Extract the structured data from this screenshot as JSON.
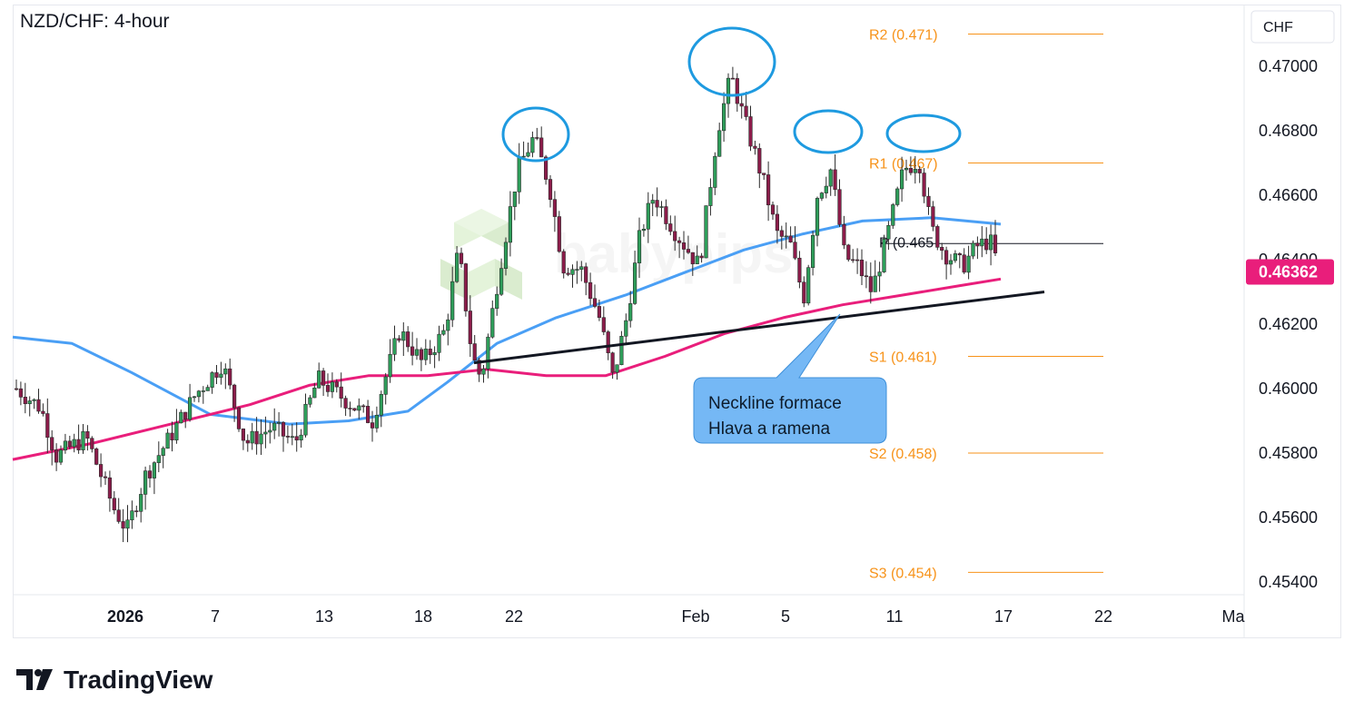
{
  "chart_data": {
    "type": "candlestick",
    "title": "NZD/CHF: 4-hour",
    "currency": "CHF",
    "last_price": "0.46362",
    "price_axis": [
      "0.47000",
      "0.46800",
      "0.46600",
      "0.46400",
      "0.46200",
      "0.46000",
      "0.45800",
      "0.45600",
      "0.45400"
    ],
    "ylim": [
      0.4535,
      0.4718
    ],
    "date_axis": [
      "2026",
      "7",
      "13",
      "18",
      "22",
      "Feb",
      "5",
      "11",
      "17",
      "22",
      "Ma"
    ],
    "pivot_levels": [
      {
        "name": "R2",
        "label": "R2 (0.471)",
        "value": 0.471
      },
      {
        "name": "R1",
        "label": "R1 (0.467)",
        "value": 0.467
      },
      {
        "name": "P",
        "label": "P (0.465",
        "value": 0.4645
      },
      {
        "name": "S1",
        "label": "S1 (0.461)",
        "value": 0.461
      },
      {
        "name": "S2",
        "label": "S2 (0.458)",
        "value": 0.458
      },
      {
        "name": "S3",
        "label": "S3 (0.454)",
        "value": 0.4543
      }
    ],
    "series": [
      {
        "name": "",
        "color": "#4a9ff5",
        "x": [
          0,
          0.06,
          0.12,
          0.2,
          0.28,
          0.34,
          0.4,
          0.44,
          0.49,
          0.55,
          0.62,
          0.68,
          0.74,
          0.8,
          0.86,
          0.93,
          1.0
        ],
        "values": [
          0.4616,
          0.4614,
          0.4605,
          0.4592,
          0.4589,
          0.459,
          0.4593,
          0.4602,
          0.4614,
          0.4622,
          0.4629,
          0.4636,
          0.4643,
          0.4648,
          0.4652,
          0.4653,
          0.4651
        ]
      },
      {
        "name": "",
        "color": "#e91e7b",
        "x": [
          0,
          0.08,
          0.16,
          0.24,
          0.3,
          0.36,
          0.42,
          0.48,
          0.54,
          0.6,
          0.66,
          0.72,
          0.78,
          0.84,
          0.9,
          0.96,
          1.0
        ],
        "values": [
          0.4578,
          0.4583,
          0.4589,
          0.4595,
          0.4601,
          0.4604,
          0.4604,
          0.4606,
          0.4604,
          0.4604,
          0.461,
          0.4617,
          0.4622,
          0.4626,
          0.4629,
          0.4632,
          0.4634
        ]
      }
    ],
    "neckline": {
      "from": 0.4608,
      "to": 0.463
    },
    "annotation": {
      "line1": "Neckline formace",
      "line2": "Hlava a ramena"
    }
  },
  "watermark": "babypips",
  "brand": "TradingView"
}
